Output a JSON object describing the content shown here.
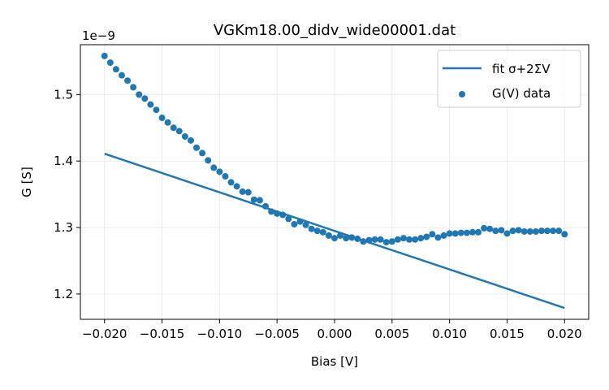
{
  "chart_data": {
    "type": "scatter",
    "title": "VGKm18.00_didv_wide00001.dat",
    "xlabel": "Bias [V]",
    "ylabel": "G [S]",
    "y_offset_text": "1e−9",
    "xlim": [
      -0.0221,
      0.0221
    ],
    "ylim": [
      1.162,
      1.575
    ],
    "x_ticks": [
      -0.02,
      -0.015,
      -0.01,
      -0.005,
      0.0,
      0.005,
      0.01,
      0.015,
      0.02
    ],
    "x_tick_labels": [
      "−0.020",
      "−0.015",
      "−0.010",
      "−0.005",
      "0.000",
      "0.005",
      "0.010",
      "0.015",
      "0.020"
    ],
    "y_ticks": [
      1.2,
      1.3,
      1.4,
      1.5
    ],
    "y_tick_labels": [
      "1.2",
      "1.3",
      "1.4",
      "1.5"
    ],
    "grid": true,
    "legend_position": "top-right",
    "colors": {
      "series": "#1f77b4"
    },
    "series": [
      {
        "name": "fit σ+2ΣV",
        "kind": "line",
        "x": [
          -0.02,
          0.02
        ],
        "y": [
          1.411,
          1.179
        ]
      },
      {
        "name": "G(V) data",
        "kind": "scatter",
        "x": [
          -0.02,
          -0.0195,
          -0.019,
          -0.0185,
          -0.018,
          -0.0175,
          -0.017,
          -0.0165,
          -0.016,
          -0.0155,
          -0.015,
          -0.0145,
          -0.014,
          -0.0135,
          -0.013,
          -0.0125,
          -0.012,
          -0.0115,
          -0.011,
          -0.0105,
          -0.01,
          -0.0095,
          -0.009,
          -0.0085,
          -0.008,
          -0.0075,
          -0.007,
          -0.0065,
          -0.006,
          -0.0055,
          -0.005,
          -0.0045,
          -0.004,
          -0.0035,
          -0.003,
          -0.0025,
          -0.002,
          -0.0015,
          -0.001,
          -0.0005,
          0.0,
          0.0005,
          0.001,
          0.0015,
          0.002,
          0.0025,
          0.003,
          0.0035,
          0.004,
          0.0045,
          0.005,
          0.0055,
          0.006,
          0.0065,
          0.007,
          0.0075,
          0.008,
          0.0085,
          0.009,
          0.0095,
          0.01,
          0.0105,
          0.011,
          0.0115,
          0.012,
          0.0125,
          0.013,
          0.0135,
          0.014,
          0.0145,
          0.015,
          0.0155,
          0.016,
          0.0165,
          0.017,
          0.0175,
          0.018,
          0.0185,
          0.019,
          0.0195,
          0.02
        ],
        "y": [
          1.558,
          1.548,
          1.538,
          1.529,
          1.521,
          1.511,
          1.5,
          1.494,
          1.485,
          1.477,
          1.465,
          1.458,
          1.45,
          1.445,
          1.437,
          1.431,
          1.42,
          1.412,
          1.401,
          1.39,
          1.384,
          1.377,
          1.368,
          1.362,
          1.354,
          1.353,
          1.342,
          1.341,
          1.332,
          1.324,
          1.321,
          1.319,
          1.313,
          1.305,
          1.309,
          1.304,
          1.298,
          1.295,
          1.293,
          1.288,
          1.284,
          1.288,
          1.284,
          1.285,
          1.283,
          1.279,
          1.281,
          1.282,
          1.282,
          1.278,
          1.279,
          1.282,
          1.284,
          1.282,
          1.282,
          1.284,
          1.286,
          1.29,
          1.285,
          1.288,
          1.291,
          1.291,
          1.292,
          1.292,
          1.293,
          1.293,
          1.299,
          1.298,
          1.295,
          1.296,
          1.291,
          1.295,
          1.296,
          1.294,
          1.294,
          1.294,
          1.295,
          1.295,
          1.295,
          1.295,
          1.29
        ]
      }
    ]
  }
}
